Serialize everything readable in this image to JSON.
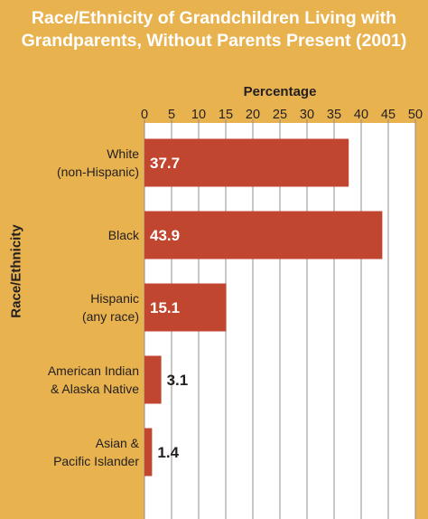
{
  "chart_data": {
    "type": "bar",
    "orientation": "horizontal",
    "title_lines": [
      "Race/Ethnicity of Grandchildren Living with",
      "Grandparents, Without Parents Present (2001)"
    ],
    "xlabel": "Percentage",
    "ylabel": "Race/Ethnicity",
    "xlim": [
      0,
      50
    ],
    "xticks": [
      "0",
      "5",
      "10",
      "15",
      "20",
      "25",
      "30",
      "35",
      "40",
      "45",
      "50"
    ],
    "grid": true,
    "categories": [
      [
        "White",
        "(non-Hispanic)"
      ],
      [
        "Black"
      ],
      [
        "Hispanic",
        "(any race)"
      ],
      [
        "American Indian",
        "& Alaska Native"
      ],
      [
        "Asian &",
        "Pacific Islander"
      ]
    ],
    "values": [
      37.7,
      43.9,
      15.1,
      3.1,
      1.4
    ],
    "value_labels": [
      "37.7",
      "43.9",
      "15.1",
      "3.1",
      "1.4"
    ],
    "colors": {
      "background": "#e8b24f",
      "bar": "#c1462f",
      "plot_bg": "#ffffff",
      "grid": "#8f8f8f",
      "title": "#ffffff",
      "text": "#231f20"
    }
  }
}
